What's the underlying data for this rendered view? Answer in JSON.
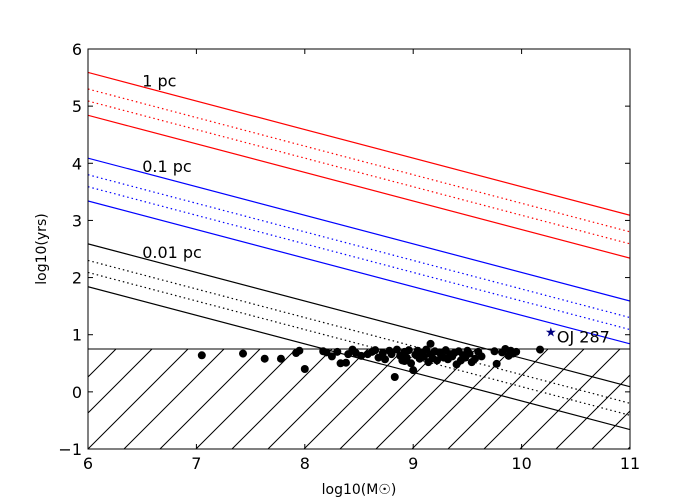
{
  "chart_data": {
    "type": "scatter",
    "title": "",
    "xlabel": "log10(M☉)",
    "ylabel": "log10(yrs)",
    "xlim": [
      6,
      11
    ],
    "ylim": [
      -1,
      6
    ],
    "xticks": [
      6,
      7,
      8,
      9,
      10,
      11
    ],
    "yticks": [
      -1,
      0,
      1,
      2,
      3,
      4,
      5,
      6
    ],
    "xtick_labels": [
      "6",
      "7",
      "8",
      "9",
      "10",
      "11"
    ],
    "ytick_labels": [
      "−1",
      "0",
      "1",
      "2",
      "3",
      "4",
      "5",
      "6"
    ],
    "lines": [
      {
        "group": "1 pc",
        "color": "#ff0000",
        "style": "solid",
        "x": [
          6,
          11
        ],
        "y": [
          5.59,
          3.09
        ]
      },
      {
        "group": "1 pc",
        "color": "#ff0000",
        "style": "dotted",
        "x": [
          6,
          11
        ],
        "y": [
          5.3,
          2.8
        ]
      },
      {
        "group": "1 pc",
        "color": "#ff0000",
        "style": "dotted",
        "x": [
          6,
          11
        ],
        "y": [
          5.09,
          2.59
        ]
      },
      {
        "group": "1 pc",
        "color": "#ff0000",
        "style": "solid",
        "x": [
          6,
          11
        ],
        "y": [
          4.84,
          2.34
        ]
      },
      {
        "group": "0.1 pc",
        "color": "#0000ff",
        "style": "solid",
        "x": [
          6,
          11
        ],
        "y": [
          4.09,
          1.59
        ]
      },
      {
        "group": "0.1 pc",
        "color": "#0000ff",
        "style": "dotted",
        "x": [
          6,
          11
        ],
        "y": [
          3.8,
          1.3
        ]
      },
      {
        "group": "0.1 pc",
        "color": "#0000ff",
        "style": "dotted",
        "x": [
          6,
          11
        ],
        "y": [
          3.59,
          1.09
        ]
      },
      {
        "group": "0.1 pc",
        "color": "#0000ff",
        "style": "solid",
        "x": [
          6,
          11
        ],
        "y": [
          3.34,
          0.84
        ]
      },
      {
        "group": "0.01 pc",
        "color": "#000000",
        "style": "solid",
        "x": [
          6,
          11
        ],
        "y": [
          2.59,
          0.09
        ]
      },
      {
        "group": "0.01 pc",
        "color": "#000000",
        "style": "dotted",
        "x": [
          6,
          11
        ],
        "y": [
          2.3,
          -0.2
        ]
      },
      {
        "group": "0.01 pc",
        "color": "#000000",
        "style": "dotted",
        "x": [
          6,
          11
        ],
        "y": [
          2.09,
          -0.41
        ]
      },
      {
        "group": "0.01 pc",
        "color": "#000000",
        "style": "solid",
        "x": [
          6,
          11
        ],
        "y": [
          1.84,
          -0.66
        ]
      }
    ],
    "hatched_region": {
      "ymin": -1,
      "ymax": 0.75,
      "boundary_y": 0.75
    },
    "line_labels": [
      {
        "text": "1 pc",
        "x": 6.5,
        "y": 5.45
      },
      {
        "text": "0.1 pc",
        "x": 6.5,
        "y": 3.95
      },
      {
        "text": "0.01 pc",
        "x": 6.5,
        "y": 2.45
      }
    ],
    "highlight": {
      "label": "OJ 287",
      "x": 10.27,
      "y": 1.06,
      "marker": "star",
      "color": "#000080"
    },
    "points": [
      [
        7.05,
        0.64
      ],
      [
        7.43,
        0.67
      ],
      [
        7.63,
        0.58
      ],
      [
        7.78,
        0.58
      ],
      [
        7.92,
        0.68
      ],
      [
        7.95,
        0.72
      ],
      [
        8.0,
        0.4
      ],
      [
        8.17,
        0.71
      ],
      [
        8.2,
        0.69
      ],
      [
        8.25,
        0.62
      ],
      [
        8.3,
        0.7
      ],
      [
        8.33,
        0.5
      ],
      [
        8.38,
        0.51
      ],
      [
        8.4,
        0.66
      ],
      [
        8.44,
        0.74
      ],
      [
        8.47,
        0.68
      ],
      [
        8.52,
        0.63
      ],
      [
        8.58,
        0.66
      ],
      [
        8.62,
        0.7
      ],
      [
        8.65,
        0.73
      ],
      [
        8.68,
        0.6
      ],
      [
        8.72,
        0.68
      ],
      [
        8.74,
        0.57
      ],
      [
        8.78,
        0.72
      ],
      [
        8.8,
        0.66
      ],
      [
        8.83,
        0.26
      ],
      [
        8.85,
        0.74
      ],
      [
        8.88,
        0.63
      ],
      [
        8.9,
        0.55
      ],
      [
        8.92,
        0.7
      ],
      [
        8.94,
        0.6
      ],
      [
        8.96,
        0.73
      ],
      [
        8.98,
        0.5
      ],
      [
        9.0,
        0.38
      ],
      [
        9.02,
        0.65
      ],
      [
        9.04,
        0.72
      ],
      [
        9.06,
        0.58
      ],
      [
        9.08,
        0.68
      ],
      [
        9.1,
        0.62
      ],
      [
        9.12,
        0.74
      ],
      [
        9.14,
        0.52
      ],
      [
        9.16,
        0.66
      ],
      [
        9.18,
        0.59
      ],
      [
        9.2,
        0.71
      ],
      [
        9.22,
        0.55
      ],
      [
        9.24,
        0.69
      ],
      [
        9.26,
        0.63
      ],
      [
        9.28,
        0.6
      ],
      [
        9.3,
        0.73
      ],
      [
        9.32,
        0.57
      ],
      [
        9.34,
        0.66
      ],
      [
        9.36,
        0.62
      ],
      [
        9.38,
        0.68
      ],
      [
        9.4,
        0.48
      ],
      [
        9.42,
        0.71
      ],
      [
        9.44,
        0.55
      ],
      [
        9.46,
        0.64
      ],
      [
        9.48,
        0.6
      ],
      [
        9.5,
        0.72
      ],
      [
        9.52,
        0.67
      ],
      [
        9.54,
        0.52
      ],
      [
        9.57,
        0.58
      ],
      [
        9.6,
        0.7
      ],
      [
        9.63,
        0.62
      ],
      [
        9.75,
        0.71
      ],
      [
        9.77,
        0.49
      ],
      [
        9.82,
        0.69
      ],
      [
        9.85,
        0.75
      ],
      [
        9.88,
        0.63
      ],
      [
        9.9,
        0.72
      ],
      [
        9.92,
        0.67
      ],
      [
        9.95,
        0.7
      ],
      [
        10.17,
        0.74
      ],
      [
        9.16,
        0.84
      ],
      [
        8.92,
        0.54
      ]
    ]
  }
}
